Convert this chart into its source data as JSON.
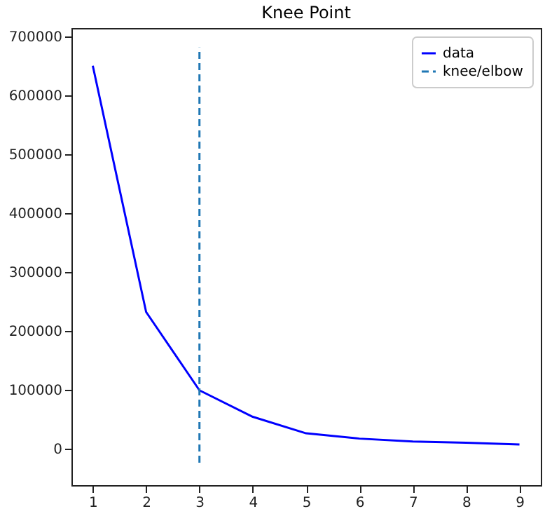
{
  "chart_data": {
    "type": "line",
    "title": "Knee Point",
    "x": [
      1,
      2,
      3,
      4,
      5,
      6,
      7,
      8,
      9
    ],
    "series": [
      {
        "name": "data",
        "color": "#0000ff",
        "line_style": "solid",
        "values": [
          650000,
          232000,
          99000,
          54000,
          26000,
          17000,
          12000,
          10000,
          7000
        ]
      },
      {
        "name": "knee/elbow",
        "color": "#1f77b4",
        "type": "line",
        "line_style": "dashed",
        "x": [
          3,
          3
        ],
        "values": [
          -24000,
          681000
        ]
      }
    ],
    "xlim": [
      0.6,
      9.4
    ],
    "xticks": [
      1,
      2,
      3,
      4,
      5,
      6,
      7,
      8,
      9
    ],
    "ylim": [
      -62000,
      714000
    ],
    "yticks": [
      0,
      100000,
      200000,
      300000,
      400000,
      500000,
      600000,
      700000
    ],
    "grid": false,
    "legend": "top right",
    "marker": "none"
  }
}
